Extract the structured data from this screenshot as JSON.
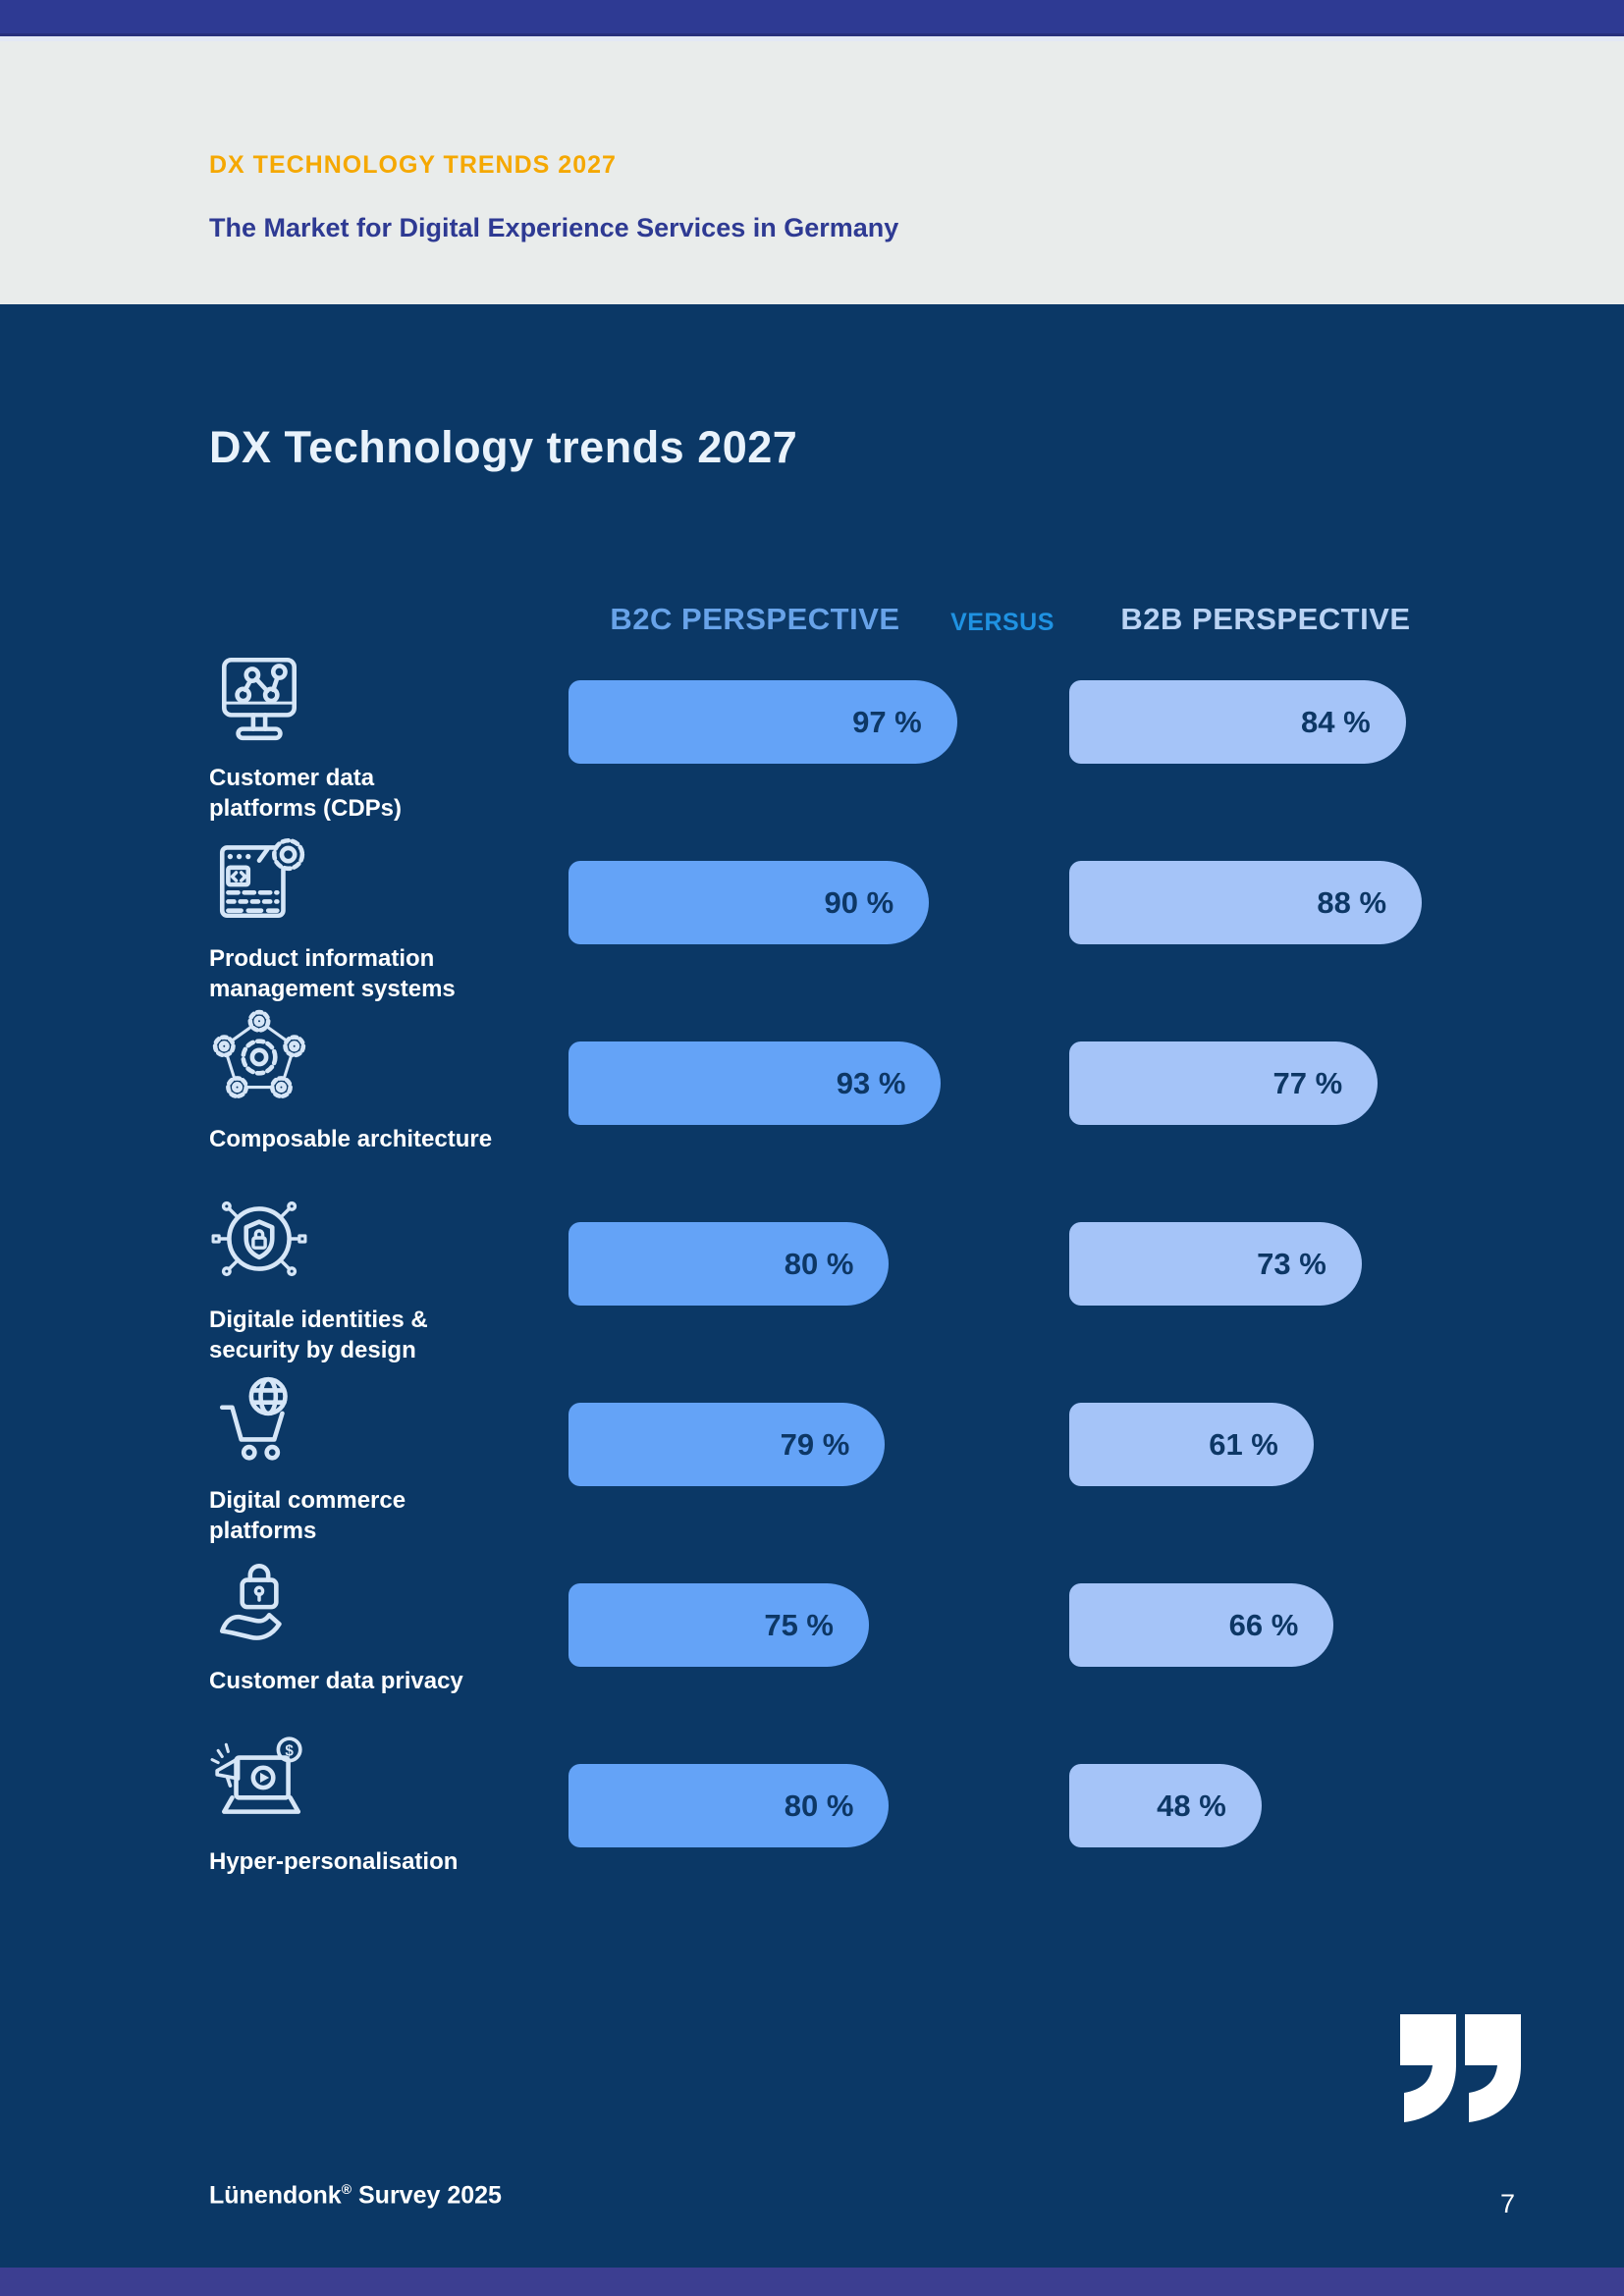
{
  "header": {
    "eyebrow": "DX TECHNOLOGY TRENDS 2027",
    "subtitle": "The Market for Digital Experience Services in Germany"
  },
  "main": {
    "title": "DX Technology trends 2027"
  },
  "columns": {
    "b2c": "B2C PERSPECTIVE",
    "versus": "VERSUS",
    "b2b": "B2B PERSPECTIVE"
  },
  "colors": {
    "top_bar": "#2e3a93",
    "header_background": "#e9eceb",
    "eyebrow_amber": "#f5a802",
    "page_navy": "#0b3866",
    "b2c_bar": "#64a3f7",
    "b2b_bar": "#a5c4f8",
    "b2c_header": "#68a3e9",
    "versus_blue": "#1f92e2",
    "b2b_header": "#bad3f4",
    "value_text": "#0d3765",
    "bottom_bar": "#3c3e91"
  },
  "rows": [
    {
      "icon": "customer-data-platforms-icon",
      "label_lines": [
        "Customer data",
        "platforms (CDPs)"
      ],
      "b2c_label": "97 %",
      "b2b_label": "84 %"
    },
    {
      "icon": "product-information-icon",
      "label_lines": [
        "Product information",
        "management systems"
      ],
      "b2c_label": "90 %",
      "b2b_label": "88 %"
    },
    {
      "icon": "composable-architecture-icon",
      "label_lines": [
        "Composable architecture"
      ],
      "b2c_label": "93 %",
      "b2b_label": "77 %"
    },
    {
      "icon": "digital-identities-icon",
      "label_lines": [
        "Digitale identities &",
        "security by design"
      ],
      "b2c_label": "80 %",
      "b2b_label": "73 %"
    },
    {
      "icon": "digital-commerce-icon",
      "label_lines": [
        "Digital commerce",
        "platforms"
      ],
      "b2c_label": "79 %",
      "b2b_label": "61 %"
    },
    {
      "icon": "customer-data-privacy-icon",
      "label_lines": [
        "Customer data privacy"
      ],
      "b2c_label": "75 %",
      "b2b_label": "66 %"
    },
    {
      "icon": "hyper-personalisation-icon",
      "label_lines": [
        "Hyper-personalisation"
      ],
      "b2c_label": "80 %",
      "b2b_label": "48 %"
    }
  ],
  "chart_data": {
    "type": "bar",
    "orientation": "horizontal",
    "title": "DX Technology trends 2027",
    "unit": "%",
    "xlim": [
      0,
      100
    ],
    "grid": false,
    "legend_position": "top",
    "categories": [
      "Customer data platforms (CDPs)",
      "Product information management systems",
      "Composable architecture",
      "Digitale identities & security by design",
      "Digital commerce platforms",
      "Customer data privacy",
      "Hyper-personalisation"
    ],
    "series": [
      {
        "name": "B2C PERSPECTIVE",
        "values": [
          97,
          90,
          93,
          80,
          79,
          75,
          80
        ]
      },
      {
        "name": "B2B PERSPECTIVE",
        "values": [
          84,
          88,
          77,
          73,
          61,
          66,
          48
        ]
      }
    ]
  },
  "footer": {
    "source_name": "Lünendonk",
    "source_reg": "®",
    "source_rest": " Survey 2025",
    "page_number": "7"
  }
}
